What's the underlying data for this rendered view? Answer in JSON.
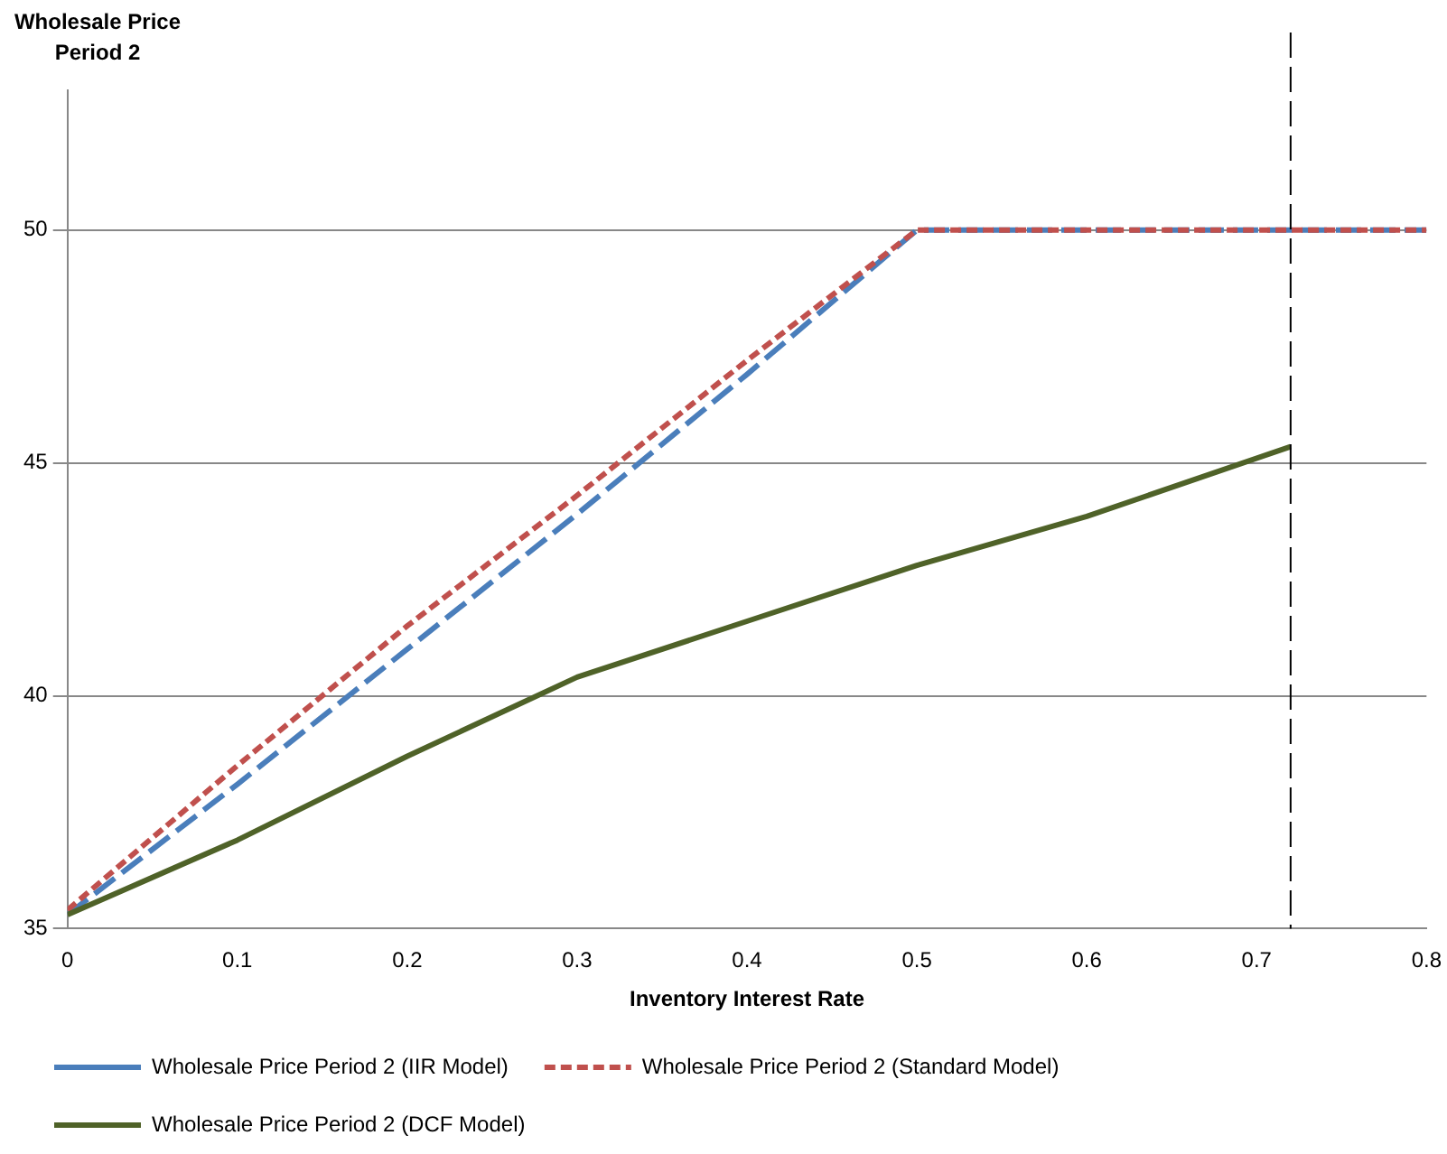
{
  "chart_data": {
    "type": "line",
    "ylabel": "Wholesale Price Period 2",
    "xlabel": "Inventory Interest Rate",
    "xlim": [
      0,
      0.8
    ],
    "xticks": [
      0,
      0.1,
      0.2,
      0.3,
      0.4,
      0.5,
      0.6,
      0.7,
      0.8
    ],
    "ylim": [
      35,
      53
    ],
    "yticks": [
      35,
      40,
      45,
      50
    ],
    "grid": "y",
    "legend": "bottom",
    "marker": "none",
    "series": [
      {
        "name": "Wholesale Price Period 2 (IIR Model)",
        "color": "#4a7ebb",
        "line_style": "dashed",
        "x": [
          0,
          0.1,
          0.2,
          0.3,
          0.4,
          0.5,
          0.8
        ],
        "values": [
          35.3,
          38.1,
          41.0,
          43.9,
          46.9,
          50,
          50
        ]
      },
      {
        "name": "Wholesale Price Period 2 (Standard Model)",
        "color": "#c0504d",
        "line_style": "dotted",
        "x": [
          0,
          0.1,
          0.2,
          0.3,
          0.4,
          0.5,
          0.8
        ],
        "values": [
          35.4,
          38.5,
          41.5,
          44.3,
          47.2,
          50,
          50
        ]
      },
      {
        "name": "Wholesale Price Period 2 (DCF Model)",
        "color": "#4f6228",
        "line_style": "solid",
        "x": [
          0,
          0.1,
          0.2,
          0.3,
          0.4,
          0.5,
          0.6,
          0.72
        ],
        "values": [
          35.3,
          36.9,
          38.7,
          40.4,
          41.6,
          42.8,
          43.85,
          45.35
        ]
      }
    ],
    "ref_lines": [
      {
        "axis": "x",
        "value": 0.72,
        "color": "#000000",
        "line_style": "dashed"
      }
    ]
  }
}
